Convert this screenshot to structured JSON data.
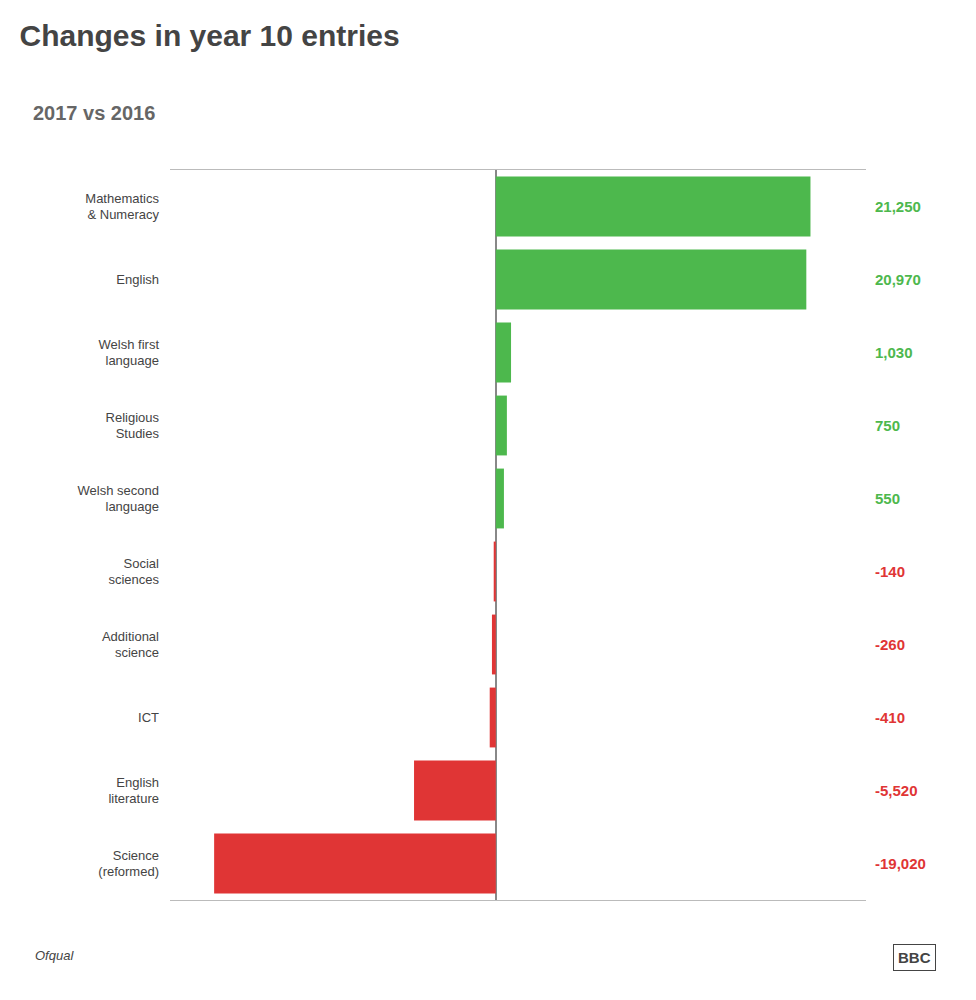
{
  "chart_data": {
    "type": "bar",
    "orientation": "horizontal",
    "title": "Changes in year 10 entries",
    "subtitle": "2017 vs 2016",
    "annotations": [
      "Ofqual",
      "BBC"
    ],
    "categories": [
      "Mathematics\n& Numeracy",
      "English",
      "Welsh first\nlanguage",
      "Religious\nStudies",
      "Welsh second\nlanguage",
      "Social\nsciences",
      "Additional\nscience",
      "ICT",
      "English\nliterature",
      "Science\n(reformed)"
    ],
    "values": [
      21250,
      20970,
      1030,
      750,
      550,
      -140,
      -260,
      -410,
      -5520,
      -19020
    ],
    "value_labels": [
      "21,250",
      "20,970",
      "1,030",
      "750",
      "550",
      "-140",
      "-260",
      "-410",
      "-5,520",
      "-19,020"
    ],
    "colors": [
      "#4db84d",
      "#4db84d",
      "#4db84d",
      "#4db84d",
      "#4db84d",
      "#e03535",
      "#e03535",
      "#e03535",
      "#e03535",
      "#e03535"
    ],
    "xlim": [
      -22000,
      25000
    ],
    "xticks": [],
    "tick_labels": "y",
    "data_labels": true,
    "grid": false
  }
}
